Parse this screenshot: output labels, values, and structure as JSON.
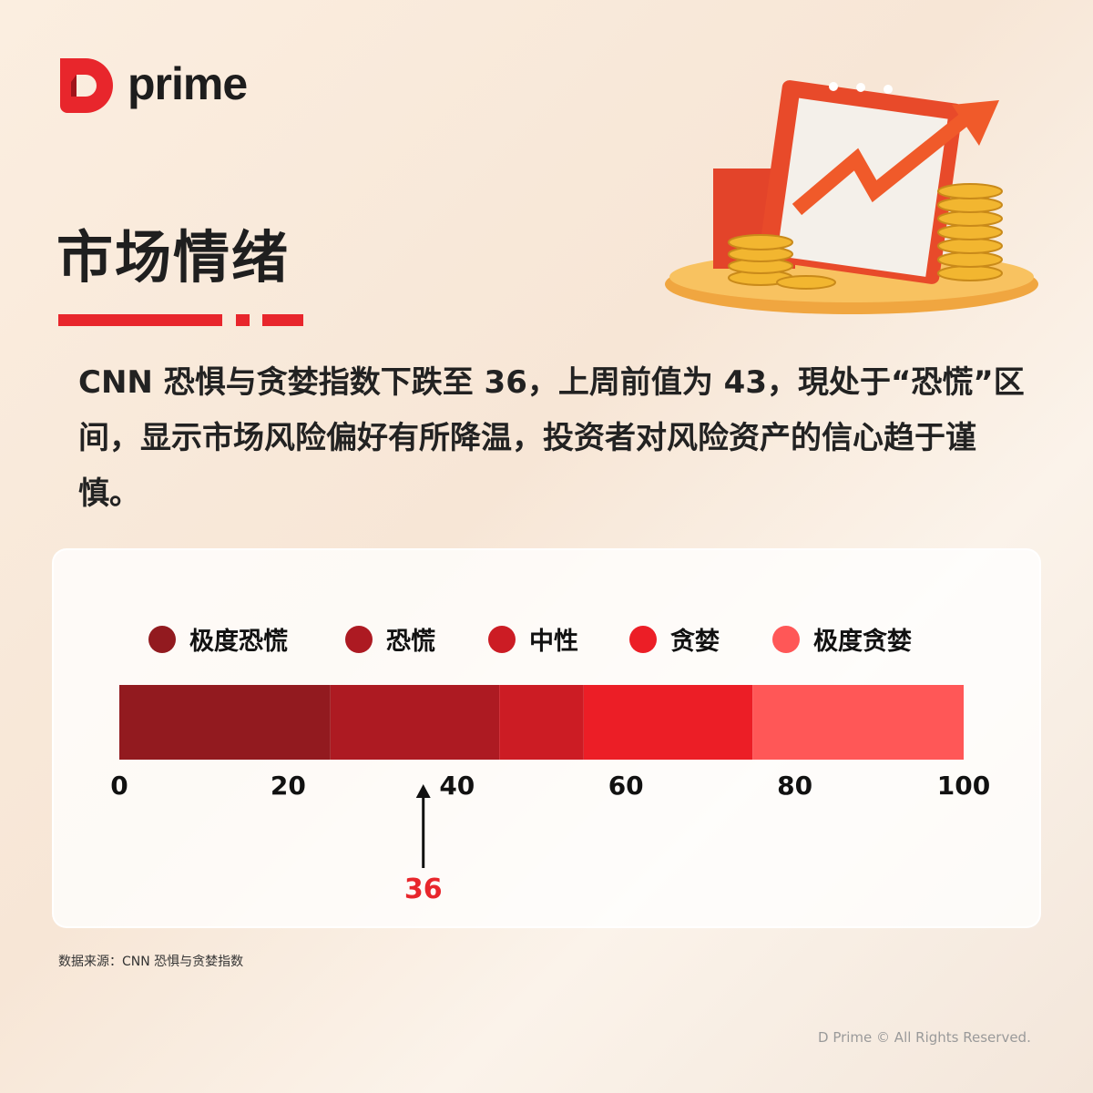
{
  "logo": {
    "text": "prime",
    "brand_color": "#e8262c"
  },
  "title": "市场情绪",
  "description": "CNN 恐惧与贪婪指数下跌至 36，上周前值为 43，現处于“恐慌”区间，显示市场风险偏好有所降温，投资者对风险资产的信心趋于谨慎。",
  "chart_data": {
    "type": "bar",
    "orientation": "horizontal-gauge",
    "xlim": [
      0,
      100
    ],
    "ticks": [
      "0",
      "20",
      "40",
      "60",
      "80",
      "100"
    ],
    "tick_values": [
      0,
      20,
      40,
      60,
      80,
      100
    ],
    "zones": [
      {
        "name": "极度恐慌",
        "from": 0,
        "to": 25,
        "color": "#921a1f"
      },
      {
        "name": "恐慌",
        "from": 25,
        "to": 45,
        "color": "#ad1a22"
      },
      {
        "name": "中性",
        "from": 45,
        "to": 55,
        "color": "#cc1c24"
      },
      {
        "name": "贪婪",
        "from": 55,
        "to": 75,
        "color": "#ec1e26"
      },
      {
        "name": "极度贪婪",
        "from": 75,
        "to": 100,
        "color": "#ff5757"
      }
    ],
    "marker": {
      "value": 36,
      "label": "36",
      "color": "#e8262c"
    }
  },
  "source": "数据来源：CNN 恐惧与贪婪指数",
  "copyright": "D Prime © All Rights Reserved."
}
